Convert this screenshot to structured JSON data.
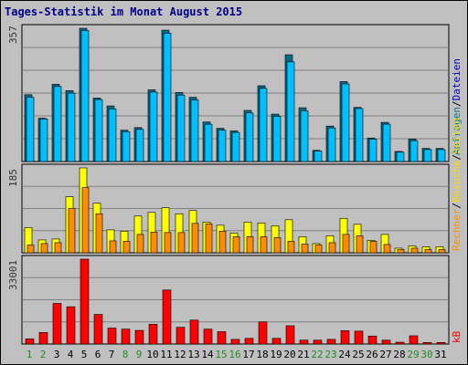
{
  "title": "Tages-Statistik im Monat August 2015",
  "colors": {
    "background": "#c0c0c0",
    "panel": "#c0c0c0",
    "grid": "#808080",
    "anfragen": "#00bfff",
    "dateien": "#0000cd",
    "seiten": "#ffff00",
    "besuche": "#ff8c00",
    "rechner": "#ffa500",
    "kb": "#ff0000",
    "weekend": "#228b22",
    "weekday": "#000000"
  },
  "legend": {
    "top": [
      {
        "text": "Anfragen",
        "color": "#008080"
      },
      {
        "text": "/",
        "color": "#000000"
      },
      {
        "text": "Dateien",
        "color": "#0000cd"
      }
    ],
    "middle": [
      {
        "text": "Rechner",
        "color": "#ff8c00"
      },
      {
        "text": "/",
        "color": "#000000"
      },
      {
        "text": "Besuche",
        "color": "#ffd700"
      },
      {
        "text": "/",
        "color": "#000000"
      },
      {
        "text": "Seiten",
        "color": "#ffd700"
      }
    ],
    "bottom": [
      {
        "text": "kB",
        "color": "#ff0000"
      }
    ]
  },
  "chart_data": {
    "type": "bar",
    "x": [
      1,
      2,
      3,
      4,
      5,
      6,
      7,
      8,
      9,
      10,
      11,
      12,
      13,
      14,
      15,
      16,
      17,
      18,
      19,
      20,
      21,
      22,
      23,
      24,
      25,
      26,
      27,
      28,
      29,
      30,
      31
    ],
    "weekend_days": [
      1,
      2,
      8,
      9,
      15,
      16,
      22,
      23,
      29,
      30
    ],
    "panels": [
      {
        "id": "top",
        "ymax_label": "357",
        "ymax": 357,
        "series": [
          {
            "name": "Anfragen",
            "values": [
              179,
              116,
              207,
              190,
              357,
              170,
              149,
              84,
              91,
              192,
              352,
              185,
              172,
              106,
              89,
              82,
              137,
              203,
              127,
              286,
              144,
              30,
              95,
              214,
              145,
              63,
              105,
              27,
              60,
              35,
              35
            ]
          },
          {
            "name": "Dateien",
            "values": [
              172,
              114,
              201,
              183,
              351,
              166,
              141,
              80,
              86,
              186,
              344,
              178,
              165,
              100,
              84,
              78,
              130,
              196,
              121,
              267,
              136,
              28,
              90,
              208,
              142,
              60,
              100,
              25,
              56,
              32,
              32
            ]
          }
        ]
      },
      {
        "id": "middle",
        "ymax_label": "185",
        "ymax": 185,
        "series": [
          {
            "name": "Seiten",
            "values": [
              55,
              28,
              30,
              122,
              185,
              108,
              50,
              47,
              80,
              88,
              98,
              85,
              92,
              67,
              60,
              43,
              67,
              65,
              59,
              72,
              35,
              20,
              37,
              75,
              62,
              27,
              40,
              10,
              15,
              13,
              13
            ]
          },
          {
            "name": "Besuche",
            "values": [
              17,
              20,
              22,
              97,
              142,
              85,
              26,
              25,
              40,
              45,
              44,
              44,
              64,
              63,
              47,
              35,
              35,
              35,
              33,
              25,
              19,
              17,
              22,
              40,
              37,
              25,
              18,
              7,
              10,
              7,
              7
            ]
          }
        ]
      },
      {
        "id": "bottom",
        "ymax_label": "33001",
        "ymax": 33001,
        "series": [
          {
            "name": "kB",
            "values": [
              2000,
              4500,
              15800,
              14500,
              33001,
              11500,
              6200,
              5800,
              5300,
              7700,
              21000,
              6500,
              9300,
              5800,
              4800,
              1800,
              2200,
              8600,
              2200,
              7100,
              1500,
              1500,
              1800,
              5200,
              5000,
              3100,
              1500,
              700,
              3200,
              600,
              600
            ]
          }
        ]
      }
    ]
  }
}
